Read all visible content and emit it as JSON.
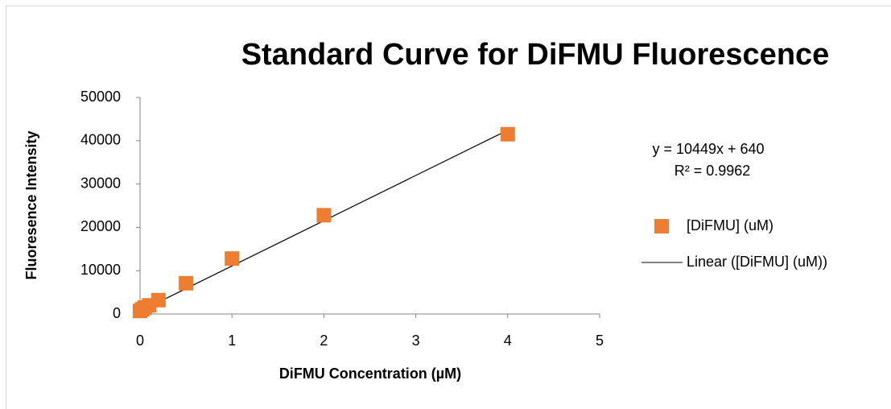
{
  "chart_data": {
    "type": "scatter",
    "title": "Standard Curve for DiFMU Fluorescence",
    "x_label": "DiFMU Concentration (µM)",
    "y_label": "Fluoresence Intensity",
    "series": [
      {
        "name": "[DiFMU] (uM)",
        "color": "#ed7d31",
        "x": [
          0,
          0.025,
          0.05,
          0.1,
          0.2,
          0.5,
          1,
          2,
          4
        ],
        "values": [
          700,
          1100,
          1500,
          2000,
          3200,
          7100,
          12800,
          22800,
          41500
        ]
      }
    ],
    "trendline": {
      "name": "Linear ([DiFMU] (uM))",
      "color": "#000000",
      "slope": 10449,
      "intercept": 640,
      "equation_label": "y = 10449x + 640",
      "r2_label": "R² = 0.9962"
    },
    "xlim": [
      0,
      5
    ],
    "xticks": [
      0,
      1,
      2,
      3,
      4,
      5
    ],
    "ylim": [
      0,
      50000
    ],
    "yticks": [
      0,
      10000,
      20000,
      30000,
      40000,
      50000
    ],
    "grid": false,
    "legend": "right"
  }
}
